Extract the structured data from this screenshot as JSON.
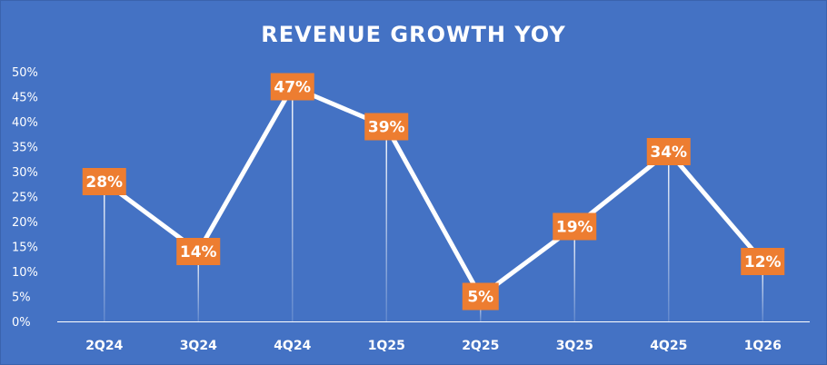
{
  "chart_data": {
    "type": "line",
    "title": "REVENUE GROWTH YOY",
    "xlabel": "",
    "ylabel": "",
    "categories": [
      "2Q24",
      "3Q24",
      "4Q24",
      "1Q25",
      "2Q25",
      "3Q25",
      "4Q25",
      "1Q26"
    ],
    "series": [
      {
        "name": "Revenue Growth YoY",
        "values": [
          28,
          14,
          47,
          39,
          5,
          19,
          34,
          12
        ],
        "labels": [
          "28%",
          "14%",
          "47%",
          "39%",
          "5%",
          "19%",
          "34%",
          "12%"
        ]
      }
    ],
    "ylim": [
      0,
      50
    ],
    "yticks": [
      0,
      5,
      10,
      15,
      20,
      25,
      30,
      35,
      40,
      45,
      50
    ],
    "ytick_labels": [
      "0%",
      "5%",
      "10%",
      "15%",
      "20%",
      "25%",
      "30%",
      "35%",
      "40%",
      "45%",
      "50%"
    ],
    "grid": false,
    "drop_lines": true,
    "legend": "none",
    "colors": {
      "background": "#4472C4",
      "line": "#FFFFFF",
      "label_box": "#ED7D31",
      "text": "#FFFFFF"
    }
  }
}
